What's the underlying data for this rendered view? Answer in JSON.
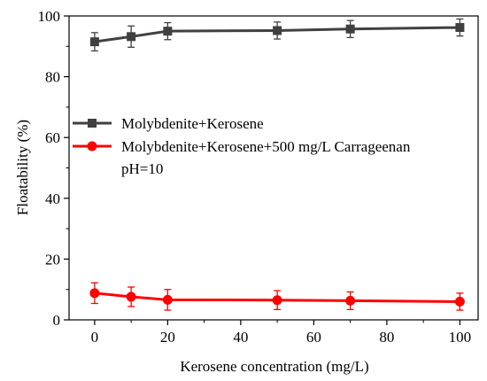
{
  "chart_data": {
    "type": "line",
    "xlabel": "Kerosene concentration (mg/L)",
    "ylabel": "Floatability (%)",
    "xlim": [
      -7,
      105
    ],
    "ylim": [
      0,
      100
    ],
    "xticks": [
      0,
      20,
      40,
      60,
      80,
      100
    ],
    "yticks": [
      0,
      20,
      40,
      60,
      80,
      100
    ],
    "grid": false,
    "legend_position": "center-left",
    "series": [
      {
        "name": "Molybdenite+Kerosene",
        "color": "#404040",
        "marker": "square",
        "x": [
          0,
          10,
          20,
          50,
          70,
          100
        ],
        "y": [
          91.5,
          93.2,
          95.0,
          95.2,
          95.7,
          96.2
        ],
        "error": [
          3.0,
          3.5,
          2.8,
          2.8,
          2.8,
          2.8
        ]
      },
      {
        "name": "Molybdenite+Kerosene+500 mg/L Carrageenan",
        "color": "#ff0000",
        "marker": "circle",
        "x": [
          0,
          10,
          20,
          50,
          70,
          100
        ],
        "y": [
          8.8,
          7.6,
          6.6,
          6.5,
          6.3,
          6.0
        ],
        "error": [
          3.4,
          3.2,
          3.4,
          3.1,
          2.9,
          2.8
        ]
      }
    ],
    "annotation": "pH=10"
  }
}
